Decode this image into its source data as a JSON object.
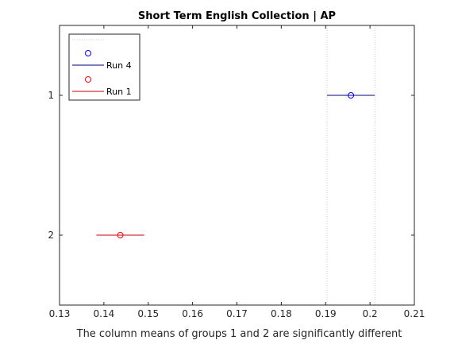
{
  "chart_data": {
    "type": "scatter",
    "title": "Short Term English Collection | AP",
    "xlabel": "The column means of groups 1 and 2 are significantly different",
    "ylabel": "",
    "xlim": [
      0.13,
      0.21
    ],
    "ylim": [
      0.5,
      2.5
    ],
    "y_direction": "reversed",
    "x_ticks": [
      "0.13",
      "0.14",
      "0.15",
      "0.16",
      "0.17",
      "0.18",
      "0.19",
      "0.2",
      "0.21"
    ],
    "x_tick_values": [
      0.13,
      0.14,
      0.15,
      0.16,
      0.17,
      0.18,
      0.19,
      0.2,
      0.21
    ],
    "y_ticks": [
      "1",
      "2"
    ],
    "y_tick_values": [
      1,
      2
    ],
    "grid": false,
    "marker": "circle",
    "reference_lines": {
      "style": "dotted",
      "color": "#c8c8c8",
      "x": [
        0.1903,
        0.2011
      ]
    },
    "legend_position": "top-left",
    "series": [
      {
        "name": "Run 4",
        "group": 1,
        "color": "#0000ff",
        "line_color": "#00007f",
        "mean": 0.1957,
        "interval": [
          0.1903,
          0.2011
        ]
      },
      {
        "name": "Run 1",
        "group": 2,
        "color": "#ff0000",
        "line_color": "#cc0000",
        "mean": 0.1437,
        "interval": [
          0.1383,
          0.1491
        ]
      }
    ]
  }
}
